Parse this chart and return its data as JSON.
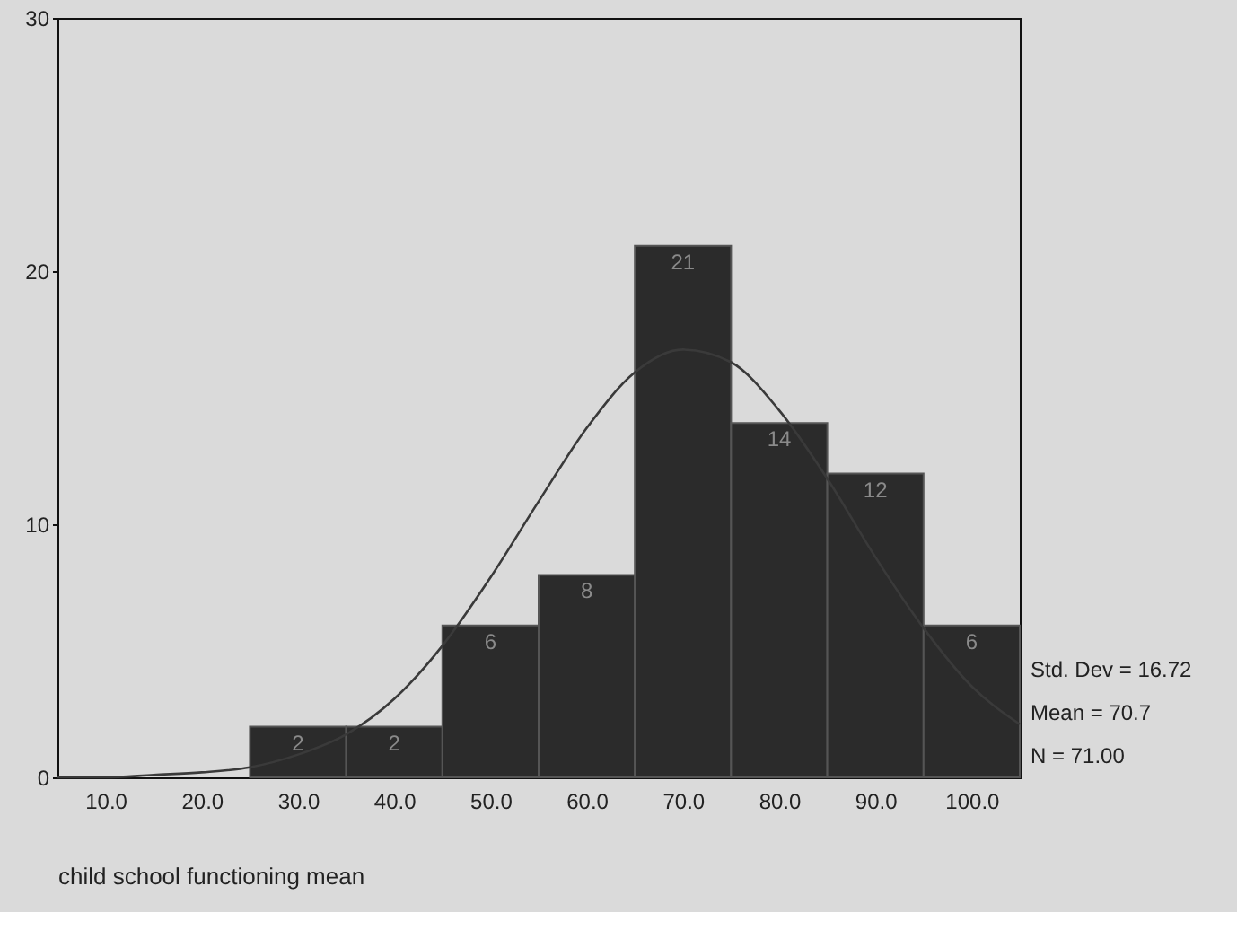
{
  "chart_data": {
    "type": "histogram",
    "xlabel": "child school functioning mean",
    "bins": [
      25,
      35,
      45,
      55,
      65,
      75,
      85,
      95,
      105
    ],
    "values": [
      2,
      2,
      6,
      8,
      21,
      14,
      12,
      6
    ],
    "color": "#2b2b2b",
    "value_labels": [
      "2",
      "2",
      "6",
      "8",
      "21",
      "14",
      "12",
      "6"
    ],
    "series": [
      {
        "type": "line",
        "color": "#3a3a3a",
        "x": [
          5,
          10,
          15,
          20,
          25,
          30,
          35,
          40,
          45,
          50,
          55,
          60,
          65,
          70,
          75,
          80,
          85,
          90,
          95,
          100,
          105
        ],
        "values": [
          0.0,
          0.0,
          0.1,
          0.2,
          0.4,
          0.9,
          1.7,
          3.1,
          5.2,
          7.9,
          10.9,
          13.8,
          16.0,
          16.9,
          16.4,
          14.5,
          11.8,
          8.7,
          5.9,
          3.6,
          2.1
        ]
      }
    ],
    "xlim": [
      5,
      105
    ],
    "xticks": [
      {
        "value": 10,
        "label": "10.0"
      },
      {
        "value": 20,
        "label": "20.0"
      },
      {
        "value": 30,
        "label": "30.0"
      },
      {
        "value": 40,
        "label": "40.0"
      },
      {
        "value": 50,
        "label": "50.0"
      },
      {
        "value": 60,
        "label": "60.0"
      },
      {
        "value": 70,
        "label": "70.0"
      },
      {
        "value": 80,
        "label": "80.0"
      },
      {
        "value": 90,
        "label": "90.0"
      },
      {
        "value": 100,
        "label": "100.0"
      }
    ],
    "ylim": [
      0,
      30
    ],
    "yticks": [
      0,
      10,
      20,
      30
    ],
    "grid": false,
    "annotations": [
      "Std. Dev = 16.72",
      "Mean = 70.7",
      "N = 71.00"
    ]
  }
}
